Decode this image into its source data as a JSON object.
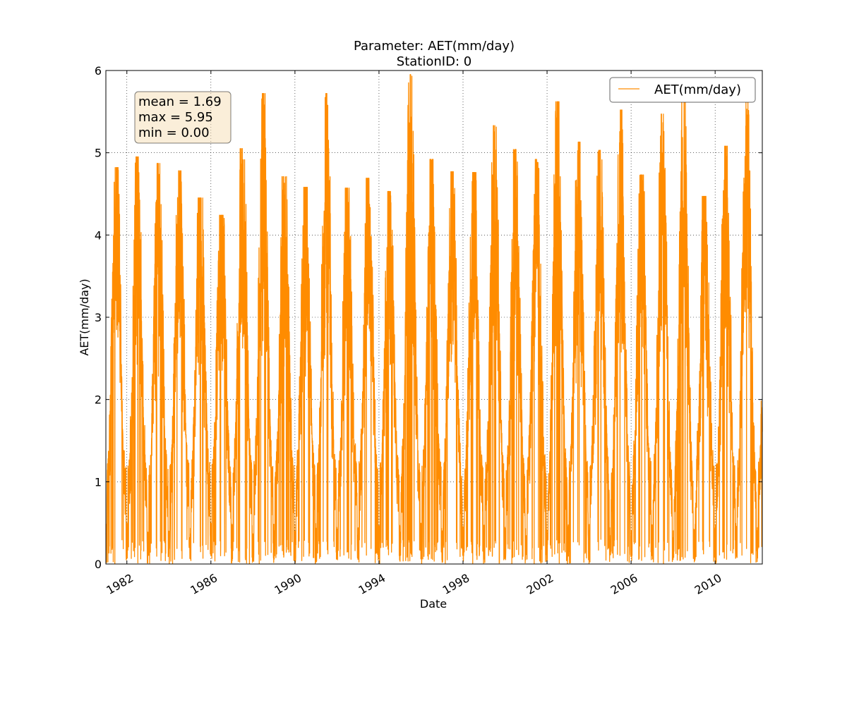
{
  "chart_data": {
    "type": "line",
    "title": "Parameter: AET(mm/day)",
    "subtitle": "StationID: 0",
    "xlabel": "Date",
    "ylabel": "AET(mm/day)",
    "xlim": [
      "1981-01-01",
      "2012-03-31"
    ],
    "ylim": [
      0,
      6
    ],
    "x_ticks": [
      "1982",
      "1986",
      "1990",
      "1994",
      "1998",
      "2002",
      "2006",
      "2010"
    ],
    "y_ticks": [
      "0",
      "1",
      "2",
      "3",
      "4",
      "5",
      "6"
    ],
    "grid": true,
    "legend_position": "top-right",
    "stats_box": [
      "mean = 1.69",
      "max = 5.95",
      "min = 0.00"
    ],
    "series": [
      {
        "name": "AET(mm/day)",
        "color": "#ff8c00",
        "annual_peaks": [
          {
            "date": "1981-07-01",
            "value": 4.82
          },
          {
            "date": "1982-07-01",
            "value": 4.95
          },
          {
            "date": "1983-07-01",
            "value": 4.87
          },
          {
            "date": "1984-07-01",
            "value": 4.78
          },
          {
            "date": "1985-07-01",
            "value": 4.45
          },
          {
            "date": "1986-07-01",
            "value": 4.24
          },
          {
            "date": "1987-07-01",
            "value": 5.05
          },
          {
            "date": "1988-07-01",
            "value": 5.72
          },
          {
            "date": "1989-07-01",
            "value": 4.71
          },
          {
            "date": "1990-07-01",
            "value": 4.58
          },
          {
            "date": "1991-07-01",
            "value": 5.72
          },
          {
            "date": "1992-07-01",
            "value": 4.57
          },
          {
            "date": "1993-07-01",
            "value": 4.69
          },
          {
            "date": "1994-07-01",
            "value": 4.53
          },
          {
            "date": "1995-07-01",
            "value": 5.95
          },
          {
            "date": "1996-07-01",
            "value": 4.92
          },
          {
            "date": "1997-07-01",
            "value": 4.77
          },
          {
            "date": "1998-07-01",
            "value": 4.76
          },
          {
            "date": "1999-07-01",
            "value": 5.33
          },
          {
            "date": "2000-07-01",
            "value": 5.04
          },
          {
            "date": "2001-07-01",
            "value": 4.92
          },
          {
            "date": "2002-07-01",
            "value": 5.62
          },
          {
            "date": "2003-07-01",
            "value": 5.13
          },
          {
            "date": "2004-07-01",
            "value": 5.03
          },
          {
            "date": "2005-07-01",
            "value": 5.52
          },
          {
            "date": "2006-07-01",
            "value": 4.73
          },
          {
            "date": "2007-07-01",
            "value": 5.47
          },
          {
            "date": "2008-07-01",
            "value": 5.68
          },
          {
            "date": "2009-07-01",
            "value": 4.47
          },
          {
            "date": "2010-07-01",
            "value": 5.08
          },
          {
            "date": "2011-07-01",
            "value": 5.63
          }
        ],
        "annual_minimum": 0.0
      }
    ]
  }
}
